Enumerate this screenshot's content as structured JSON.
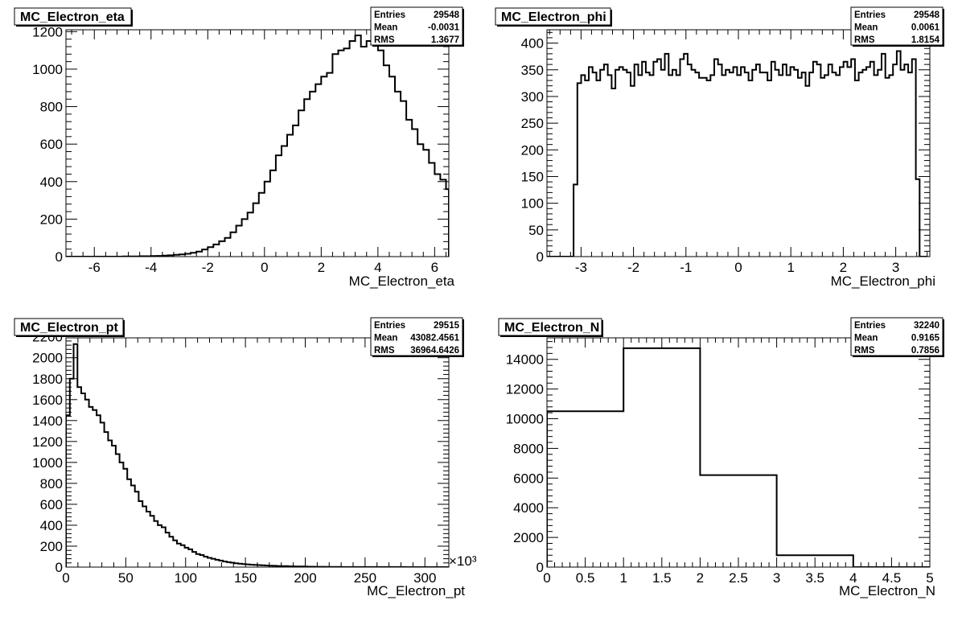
{
  "chart_data": [
    {
      "type": "bar",
      "title": "MC_Electron_eta",
      "xlabel": "MC_Electron_eta",
      "ylabel": "",
      "xlim": [
        -7,
        6.5
      ],
      "ylim": [
        0,
        1210
      ],
      "x_ticks": [
        -6,
        -4,
        -2,
        0,
        2,
        4,
        6
      ],
      "y_ticks": [
        0,
        200,
        400,
        600,
        800,
        1000,
        1200
      ],
      "x_tick_labels": [
        "-6",
        "-4",
        "-2",
        "0",
        "2",
        "4",
        "6"
      ],
      "y_tick_labels": [
        "0",
        "200",
        "400",
        "600",
        "800",
        "1000",
        "1200"
      ],
      "stats": [
        {
          "label": "Entries",
          "value": "29548"
        },
        {
          "label": "Mean",
          "value": "-0.0031"
        },
        {
          "label": "RMS",
          "value": "1.3677"
        }
      ],
      "bin_edges_start": -7,
      "bin_width": 0.2,
      "values": [
        0,
        0,
        0,
        0,
        0,
        0,
        0,
        0,
        0,
        0,
        1,
        1,
        1,
        2,
        2,
        3,
        4,
        5,
        7,
        10,
        12,
        15,
        20,
        27,
        38,
        50,
        65,
        82,
        100,
        130,
        165,
        200,
        235,
        285,
        340,
        400,
        460,
        540,
        590,
        650,
        700,
        780,
        840,
        880,
        920,
        960,
        980,
        1080,
        1100,
        1110,
        1150,
        1180,
        1120,
        1150,
        1140,
        1100,
        1020,
        960,
        880,
        830,
        730,
        680,
        600,
        570,
        500,
        440,
        410,
        360,
        330,
        290,
        265,
        230,
        200,
        180,
        160,
        140,
        125,
        105,
        90,
        75,
        65,
        53,
        43,
        35,
        27,
        22,
        17,
        14,
        10,
        8,
        6,
        5,
        4,
        3,
        2,
        2,
        1,
        1,
        1,
        1,
        0,
        0,
        0,
        0,
        0,
        0,
        0,
        0,
        0,
        0,
        0,
        0,
        0,
        0,
        0,
        0,
        0,
        0,
        0,
        0,
        0,
        0,
        0,
        0,
        0,
        0,
        0,
        0,
        0,
        0,
        0,
        0,
        0,
        0,
        0
      ]
    },
    {
      "type": "bar",
      "title": "MC_Electron_phi",
      "xlabel": "MC_Electron_phi",
      "ylabel": "",
      "xlim": [
        -3.65,
        3.65
      ],
      "ylim": [
        0,
        425
      ],
      "x_ticks": [
        -3,
        -2,
        -1,
        0,
        1,
        2,
        3
      ],
      "y_ticks": [
        0,
        50,
        100,
        150,
        200,
        250,
        300,
        350,
        400
      ],
      "x_tick_labels": [
        "-3",
        "-2",
        "-1",
        "0",
        "1",
        "2",
        "3"
      ],
      "y_tick_labels": [
        "0",
        "50",
        "100",
        "150",
        "200",
        "250",
        "300",
        "350",
        "400"
      ],
      "stats": [
        {
          "label": "Entries",
          "value": "29548"
        },
        {
          "label": "Mean",
          "value": "0.0061"
        },
        {
          "label": "RMS",
          "value": "1.8154"
        }
      ],
      "bin_edges_start": -3.65,
      "bin_width": 0.0725,
      "values": [
        0,
        0,
        0,
        0,
        0,
        0,
        0,
        135,
        325,
        340,
        330,
        355,
        345,
        330,
        350,
        360,
        340,
        315,
        350,
        355,
        350,
        345,
        320,
        360,
        340,
        365,
        345,
        340,
        365,
        370,
        350,
        380,
        340,
        350,
        340,
        370,
        380,
        360,
        350,
        345,
        335,
        335,
        330,
        340,
        370,
        360,
        340,
        350,
        345,
        355,
        340,
        355,
        345,
        330,
        350,
        360,
        345,
        345,
        330,
        365,
        350,
        340,
        360,
        340,
        355,
        350,
        335,
        345,
        320,
        345,
        365,
        360,
        335,
        340,
        360,
        345,
        340,
        355,
        365,
        355,
        370,
        330,
        345,
        350,
        355,
        365,
        340,
        350,
        380,
        335,
        340,
        360,
        385,
        350,
        360,
        345,
        370,
        145,
        0,
        0
      ]
    },
    {
      "type": "bar",
      "title": "MC_Electron_pt",
      "xlabel": "MC_Electron_pt",
      "ylabel": "",
      "x_multiplier": "×10³",
      "xlim": [
        0,
        320
      ],
      "ylim": [
        0,
        2190
      ],
      "x_ticks": [
        0,
        50,
        100,
        150,
        200,
        250,
        300
      ],
      "y_ticks": [
        0,
        200,
        400,
        600,
        800,
        1000,
        1200,
        1400,
        1600,
        1800,
        2000,
        2200
      ],
      "x_tick_labels": [
        "0",
        "50",
        "100",
        "150",
        "200",
        "250",
        "300"
      ],
      "y_tick_labels": [
        "0",
        "200",
        "400",
        "600",
        "800",
        "1000",
        "1200",
        "1400",
        "1600",
        "1800",
        "2000",
        "2200"
      ],
      "stats": [
        {
          "label": "Entries",
          "value": "29515"
        },
        {
          "label": "Mean",
          "value": "43082.4561"
        },
        {
          "label": "RMS",
          "value": "36964.6426"
        }
      ],
      "bin_edges_start": 0,
      "bin_width": 3.2,
      "values": [
        1450,
        1800,
        2130,
        1720,
        1660,
        1600,
        1530,
        1500,
        1450,
        1380,
        1290,
        1210,
        1160,
        1080,
        1000,
        940,
        840,
        780,
        720,
        630,
        580,
        530,
        490,
        440,
        400,
        380,
        330,
        290,
        255,
        225,
        210,
        185,
        170,
        145,
        125,
        115,
        100,
        88,
        80,
        70,
        62,
        54,
        47,
        42,
        37,
        33,
        29,
        26,
        23,
        21,
        19,
        17,
        15,
        13,
        12,
        11,
        10,
        9,
        8,
        7,
        6,
        5,
        5,
        4,
        4,
        3,
        3,
        3,
        2,
        2,
        2,
        2,
        1,
        1,
        1,
        1,
        1,
        1,
        1,
        1,
        1,
        1,
        1,
        1,
        1,
        1,
        1,
        1,
        1,
        0,
        0,
        0,
        0,
        0,
        0,
        0,
        0,
        0,
        0,
        0
      ]
    },
    {
      "type": "bar",
      "title": "MC_Electron_N",
      "xlabel": "MC_Electron_N",
      "ylabel": "",
      "xlim": [
        0,
        5
      ],
      "ylim": [
        0,
        15450
      ],
      "x_ticks": [
        0,
        0.5,
        1,
        1.5,
        2,
        2.5,
        3,
        3.5,
        4,
        4.5,
        5
      ],
      "y_ticks": [
        0,
        2000,
        4000,
        6000,
        8000,
        10000,
        12000,
        14000
      ],
      "x_tick_labels": [
        "0",
        "0.5",
        "1",
        "1.5",
        "2",
        "2.5",
        "3",
        "3.5",
        "4",
        "4.5",
        "5"
      ],
      "y_tick_labels": [
        "0",
        "2000",
        "4000",
        "6000",
        "8000",
        "10000",
        "12000",
        "14000"
      ],
      "stats": [
        {
          "label": "Entries",
          "value": "32240"
        },
        {
          "label": "Mean",
          "value": "0.9165"
        },
        {
          "label": "RMS",
          "value": "0.7856"
        }
      ],
      "bin_edges_start": 0,
      "bin_width": 1,
      "values": [
        10500,
        14750,
        6200,
        800,
        0
      ]
    }
  ]
}
